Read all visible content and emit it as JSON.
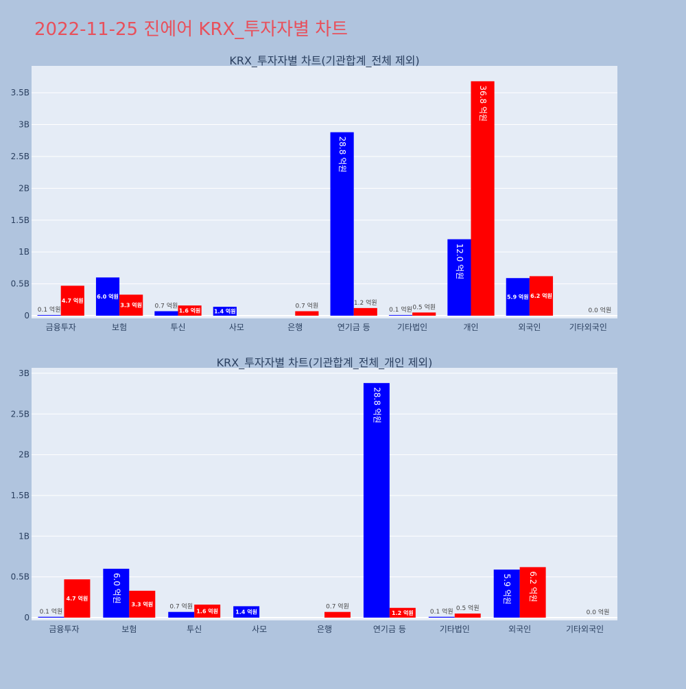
{
  "title": "2022-11-25 진에어 KRX_투자자별 차트",
  "colors": {
    "buy": "#0000ff",
    "sell": "#ff0000",
    "plot_bg": "#e5ecf6",
    "page_bg": "#b0c4de"
  },
  "chart_data": [
    {
      "type": "bar",
      "title": "KRX_투자자별 차트(기관합계_전체 제외)",
      "categories": [
        "금융투자",
        "보험",
        "투신",
        "사모",
        "은행",
        "연기금 등",
        "기타법인",
        "개인",
        "외국인",
        "기타외국인"
      ],
      "series": [
        {
          "values": [
            10000000,
            600000000,
            70000000,
            140000000,
            0,
            2880000000,
            10000000,
            1200000000,
            590000000,
            0
          ],
          "labels": [
            "0.1 억원",
            "6.0 억원",
            "0.7 억원",
            "1.4 억원",
            "",
            "28.8 억원",
            "0.1 억원",
            "12.0 억원",
            "5.9 억원",
            ""
          ]
        },
        {
          "values": [
            470000000,
            330000000,
            160000000,
            0,
            70000000,
            120000000,
            50000000,
            3680000000,
            620000000,
            0
          ],
          "labels": [
            "4.7 억원",
            "3.3 억원",
            "1.6 억원",
            "",
            "0.7 억원",
            "1.2 억원",
            "0.5 억원",
            "36.8 억원",
            "6.2 억원",
            "0.0 억원"
          ]
        }
      ],
      "ylim": [
        0,
        3900000000
      ],
      "yticks": [
        0,
        500000000,
        1000000000,
        1500000000,
        2000000000,
        2500000000,
        3000000000,
        3500000000
      ],
      "ytick_labels": [
        "0",
        "0.5B",
        "1B",
        "1.5B",
        "2B",
        "2.5B",
        "3B",
        "3.5B"
      ],
      "grid": true
    },
    {
      "type": "bar",
      "title": "KRX_투자자별 차트(기관합계_전체_개인 제외)",
      "categories": [
        "금융투자",
        "보험",
        "투신",
        "사모",
        "은행",
        "연기금 등",
        "기타법인",
        "외국인",
        "기타외국인"
      ],
      "series": [
        {
          "values": [
            10000000,
            600000000,
            70000000,
            140000000,
            0,
            2880000000,
            10000000,
            590000000,
            0
          ],
          "labels": [
            "0.1 억원",
            "6.0 억원",
            "0.7 억원",
            "1.4 억원",
            "",
            "28.8 억원",
            "0.1 억원",
            "5.9 억원",
            ""
          ]
        },
        {
          "values": [
            470000000,
            330000000,
            160000000,
            0,
            70000000,
            120000000,
            50000000,
            620000000,
            0
          ],
          "labels": [
            "4.7 억원",
            "3.3 억원",
            "1.6 억원",
            "",
            "0.7 억원",
            "1.2 억원",
            "0.5 억원",
            "6.2 억원",
            "0.0 억원"
          ]
        }
      ],
      "ylim": [
        0,
        3050000000
      ],
      "yticks": [
        0,
        500000000,
        1000000000,
        1500000000,
        2000000000,
        2500000000,
        3000000000
      ],
      "ytick_labels": [
        "0",
        "0.5B",
        "1B",
        "1.5B",
        "2B",
        "2.5B",
        "3B"
      ],
      "grid": true
    }
  ]
}
